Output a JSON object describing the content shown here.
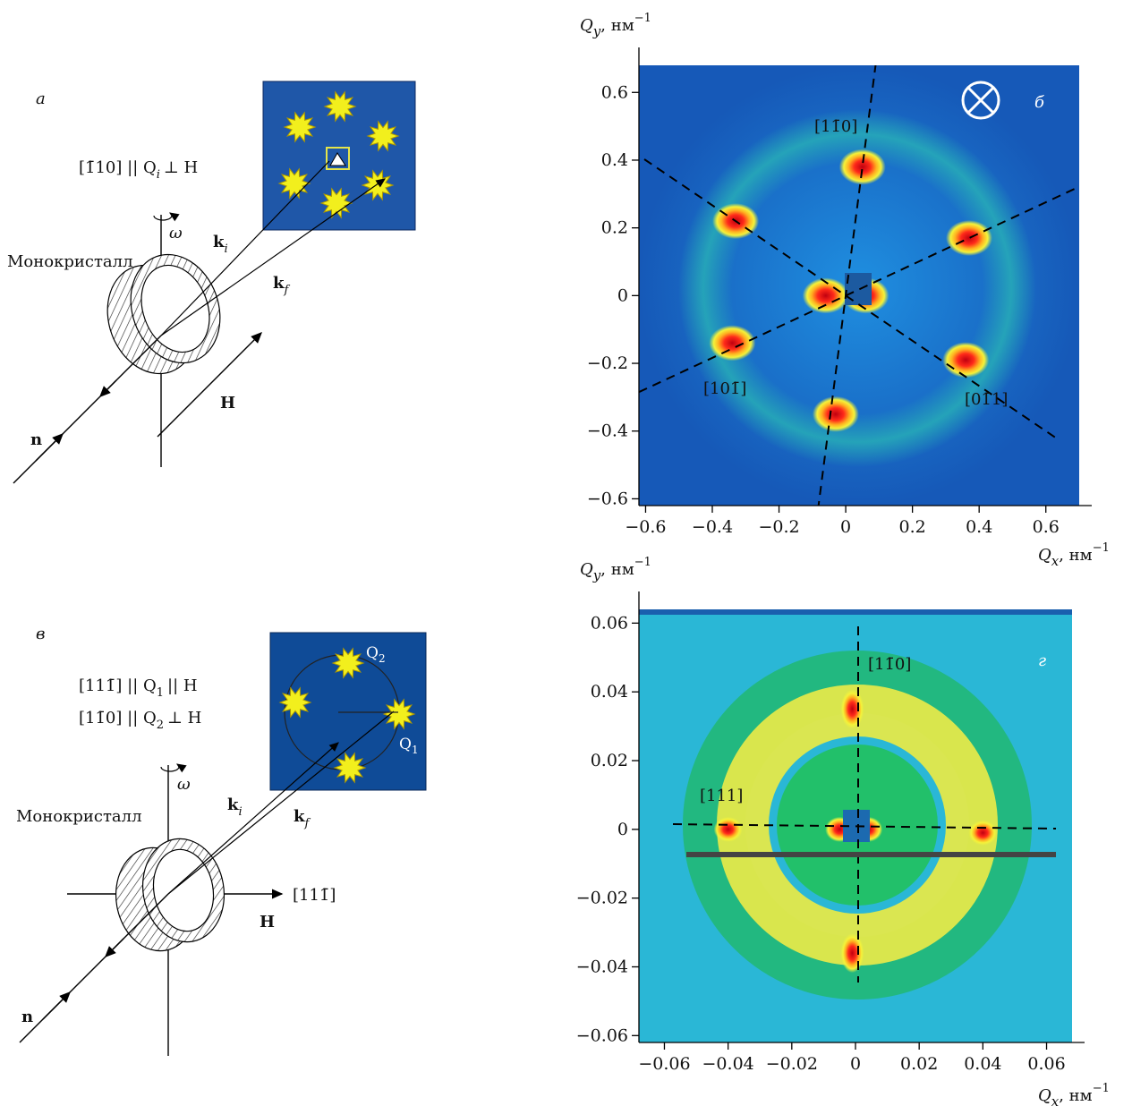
{
  "panel_a": {
    "letter": "а",
    "relation": "[1̄10] || Q",
    "relation_sub": "i",
    "relation_rest": "⊥ H",
    "crystal_label": "Монокристалл",
    "omega": "ω",
    "ki": "k",
    "ki_sub": "i",
    "kf": "k",
    "kf_sub": "f",
    "H": "H",
    "n": "n"
  },
  "panel_b_plot": {
    "letter": "б",
    "ylabel": "Q",
    "ylabel_sub": "y",
    "ylabel_units": ", нм",
    "ylabel_exp": "−1",
    "xlabel": "Q",
    "xlabel_sub": "x",
    "xlabel_units": ", нм",
    "xlabel_exp": "−1",
    "xticks": [
      "−0.6",
      "−0.4",
      "−0.2",
      "0",
      "0.2",
      "0.4",
      "0.6"
    ],
    "yticks": [
      "0.6",
      "0.4",
      "0.2",
      "0",
      "−0.2",
      "−0.4",
      "−0.6"
    ],
    "dir_top": "[11̄0]",
    "dir_left": "[101̄]",
    "dir_right": "[01̄1]",
    "field_symbol": "⊗"
  },
  "panel_c": {
    "letter": "в",
    "relation1": "[111̄] || Q",
    "relation1_sub": "1",
    "relation1_rest": "|| H",
    "relation2": "[11̄0] || Q",
    "relation2_sub": "2",
    "relation2_rest": "⊥ H",
    "q1": "Q",
    "q1_sub": "1",
    "q2": "Q",
    "q2_sub": "2",
    "crystal_label": "Монокристалл",
    "omega": "ω",
    "ki": "k",
    "ki_sub": "i",
    "kf": "k",
    "kf_sub": "f",
    "axis_label": "[111̄]",
    "H": "H",
    "n": "n"
  },
  "panel_d_plot": {
    "letter": "г",
    "ylabel": "Q",
    "ylabel_sub": "y",
    "ylabel_units": ", нм",
    "ylabel_exp": "−1",
    "xlabel": "Q",
    "xlabel_sub": "x",
    "xlabel_units": ", нм",
    "xlabel_exp": "−1",
    "xticks": [
      "−0.06",
      "−0.04",
      "−0.02",
      "0",
      "0.02",
      "0.04",
      "0.06"
    ],
    "yticks": [
      "0.06",
      "0.04",
      "0.02",
      "0",
      "−0.02",
      "−0.04",
      "−0.06"
    ],
    "dir_top": "[11̄0]",
    "dir_left": "[111]"
  },
  "chart_data": [
    {
      "type": "heatmap",
      "panel": "б",
      "xlabel": "Qx, нм−1",
      "ylabel": "Qy, нм−1",
      "xlim": [
        -0.62,
        0.7
      ],
      "ylim": [
        -0.62,
        0.68
      ],
      "peaks": [
        {
          "label": "[11̄0]",
          "x": 0.05,
          "y": 0.38
        },
        {
          "x": -0.03,
          "y": -0.35
        },
        {
          "x": -0.33,
          "y": 0.22
        },
        {
          "label": "[101̄]",
          "x": -0.34,
          "y": -0.14
        },
        {
          "x": 0.37,
          "y": 0.17
        },
        {
          "label": "[01̄1]",
          "x": 0.36,
          "y": -0.19
        },
        {
          "x": -0.06,
          "y": 0.0
        },
        {
          "x": 0.06,
          "y": 0.0
        }
      ],
      "colors": {
        "background": "#1f6fc8",
        "ring": "#2bd0b8",
        "peak_core": "#e0101a",
        "peak_halo": "#f2f230"
      }
    },
    {
      "type": "heatmap",
      "panel": "г",
      "xlabel": "Qx, нм−1",
      "ylabel": "Qy, нм−1",
      "xlim": [
        -0.068,
        0.068
      ],
      "ylim": [
        -0.062,
        0.064
      ],
      "peaks": [
        {
          "label": "[11̄0]",
          "x": -0.001,
          "y": 0.035
        },
        {
          "x": -0.001,
          "y": -0.036
        },
        {
          "label": "[111]",
          "x": -0.04,
          "y": 0.0
        },
        {
          "x": 0.04,
          "y": -0.001
        },
        {
          "x": -0.005,
          "y": 0.0
        },
        {
          "x": 0.004,
          "y": 0.0
        }
      ],
      "ring_radius": 0.036,
      "colors": {
        "background": "#27b9d8",
        "ring_inner": "#27c06a",
        "ring": "#e6ea4a",
        "peak_core": "#e0101a"
      }
    }
  ]
}
